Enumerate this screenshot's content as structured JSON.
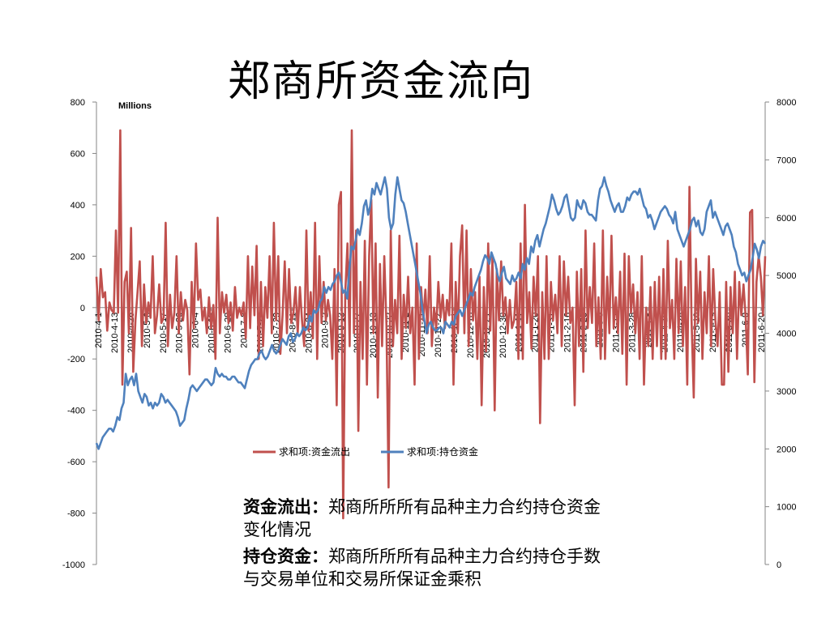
{
  "slide": {
    "title": "郑商所资金流向",
    "desc1_label": "资金流出：",
    "desc1_text": "郑商所所所有品种主力合约持仓资金变化情况",
    "desc2_label": "持仓资金：",
    "desc2_text": "郑商所所所有品种主力合约持仓手数与交易单位和交易所保证金乘积"
  },
  "chart_data": {
    "type": "line",
    "unit_label": "Millions",
    "ylim_left": [
      -1000,
      800
    ],
    "yticks_left": [
      800,
      600,
      400,
      200,
      0,
      -200,
      -400,
      -600,
      -800,
      -1000
    ],
    "ylim_right": [
      0,
      8000
    ],
    "yticks_right": [
      8000,
      7000,
      6000,
      5000,
      4000,
      3000,
      2000,
      1000,
      0
    ],
    "x_tick_labels": [
      "2010-4-1",
      "2010-4-13",
      "2010-4-26",
      "2010-5-6",
      "2010-5-17",
      "2010-5-26",
      "2010-6-4",
      "2010-6-18",
      "2010-6-29",
      "2010-7-8",
      "2010-7-20",
      "2010-7-29",
      "2010-8-11",
      "2010-8-24",
      "2010-9-2",
      "2010-9-13",
      "2010-9-27",
      "2010-10-13",
      "2010-10-22",
      "2010-11-2",
      "2010-11-11",
      "2010-11-22",
      "2010-12-1",
      "2010-12-10",
      "2010-12-21",
      "2010-12-30",
      "2011-1-11",
      "2011-1-20",
      "2011-1-31",
      "2011-2-16",
      "2011-2-25",
      "2011-3-8",
      "2011-3-17",
      "2011-3-28",
      "2011-4-8",
      "2011-4-19",
      "2011-4-28",
      "2011-5-10",
      "2011-5-19",
      "2011-5-30",
      "2011-6-9",
      "2011-6-20"
    ],
    "series": [
      {
        "name": "求和项:资金流出",
        "axis": "left",
        "color": "#c0504d",
        "values": [
          120,
          -50,
          150,
          40,
          60,
          -90,
          20,
          -10,
          -20,
          300,
          -20,
          690,
          -300,
          100,
          140,
          -100,
          310,
          -250,
          -50,
          60,
          180,
          -150,
          90,
          -60,
          20,
          -40,
          200,
          -100,
          -30,
          90,
          -60,
          -40,
          330,
          -150,
          50,
          -80,
          -20,
          200,
          -100,
          60,
          -50,
          30,
          -10,
          -260,
          100,
          -80,
          250,
          30,
          70,
          -50,
          0,
          -100,
          40,
          -80,
          10,
          -200,
          350,
          -100,
          60,
          -20,
          50,
          -60,
          20,
          -90,
          80,
          -40,
          0,
          -30,
          20,
          -120,
          200,
          -80,
          160,
          -30,
          240,
          -200,
          100,
          -150,
          80,
          -40,
          200,
          -100,
          330,
          -50,
          200,
          -180,
          -30,
          180,
          -100,
          150,
          -60,
          -20,
          80,
          -100,
          80,
          -50,
          -150,
          300,
          -90,
          60,
          -120,
          330,
          -200,
          200,
          -60,
          100,
          -50,
          30,
          -30,
          -200,
          150,
          -380,
          400,
          450,
          -820,
          60,
          250,
          -150,
          690,
          -100,
          300,
          -480,
          100,
          -200,
          260,
          -300,
          200,
          420,
          -100,
          250,
          -350,
          170,
          -150,
          200,
          -70,
          -700,
          300,
          -150,
          30,
          -100,
          280,
          -200,
          50,
          -80,
          120,
          -100,
          0,
          -300,
          250,
          -200,
          80,
          -50,
          70,
          -100,
          200,
          -150,
          0,
          -80,
          100,
          -40,
          50,
          -80,
          30,
          -30,
          250,
          -300,
          100,
          -100,
          200,
          320,
          -100,
          300,
          -150,
          150,
          -50,
          60,
          -200,
          120,
          -380,
          80,
          -170,
          250,
          -90,
          200,
          -400,
          150,
          -50,
          180,
          -30,
          40,
          -100,
          30,
          -80,
          -50,
          100,
          -200,
          250,
          -200,
          400,
          -60,
          60,
          -160,
          120,
          -30,
          200,
          -450,
          60,
          -200,
          200,
          -200,
          100,
          -50,
          50,
          -100,
          200,
          -150,
          180,
          -30,
          120,
          -60,
          0,
          -380,
          140,
          -150,
          150,
          -250,
          300,
          -80,
          80,
          -60,
          250,
          -150,
          40,
          -200,
          300,
          -200,
          120,
          -100,
          280,
          -80,
          40,
          -100,
          140,
          -180,
          210,
          -300,
          200,
          -20,
          90,
          -100,
          60,
          -200,
          200,
          -300,
          0,
          -150,
          80,
          -200,
          100,
          -150,
          120,
          -200,
          150,
          -200,
          260,
          -80,
          30,
          -200,
          190,
          -100,
          180,
          -150,
          80,
          -300,
          470,
          -50,
          -350,
          190,
          -60,
          140,
          -200,
          60,
          -100,
          200,
          -150,
          150,
          -50,
          -150,
          60,
          -300,
          -300,
          100,
          -250,
          80,
          -100,
          140,
          -200,
          100,
          -30,
          90,
          -40,
          -260,
          370,
          380,
          -290,
          100,
          200,
          120,
          -30,
          200
        ],
        "flag": "derived_values"
      },
      {
        "name": "求和项:持仓资金",
        "axis": "right",
        "color": "#4f81bd",
        "values": [
          2100,
          2000,
          2100,
          2200,
          2250,
          2300,
          2350,
          2350,
          2300,
          2400,
          2550,
          2500,
          2700,
          2800,
          3300,
          3100,
          3200,
          3250,
          3100,
          3300,
          3000,
          2900,
          2800,
          2950,
          2900,
          2750,
          2800,
          2700,
          2800,
          2750,
          2800,
          2950,
          2900,
          2800,
          2850,
          2800,
          2750,
          2700,
          2650,
          2550,
          2400,
          2450,
          2500,
          2700,
          2850,
          3050,
          3100,
          3050,
          3000,
          3050,
          3100,
          3150,
          3200,
          3200,
          3150,
          3100,
          3150,
          3400,
          3300,
          3250,
          3300,
          3250,
          3250,
          3200,
          3200,
          3250,
          3250,
          3200,
          3150,
          3150,
          3100,
          3050,
          3200,
          3350,
          3450,
          3500,
          3550,
          3550,
          3650,
          3700,
          3600,
          3550,
          3600,
          3700,
          3800,
          3700,
          3650,
          3700,
          3800,
          3900,
          3850,
          3800,
          3950,
          4000,
          3850,
          3900,
          4000,
          3950,
          4000,
          4100,
          4050,
          4100,
          4300,
          4200,
          4400,
          4350,
          4400,
          4550,
          4600,
          4800,
          4700,
          4800,
          4750,
          4850,
          4900,
          5000,
          5050,
          4900,
          4700,
          4750,
          4600,
          5100,
          5500,
          5450,
          5600,
          5800,
          5700,
          5900,
          6200,
          6300,
          6050,
          6200,
          6500,
          6400,
          6600,
          6500,
          6400,
          6550,
          6700,
          6500,
          6000,
          5800,
          5900,
          6400,
          6700,
          6500,
          6300,
          6250,
          6100,
          5900,
          5700,
          5500,
          5300,
          5100,
          4900,
          4700,
          4400,
          4200,
          4000,
          4150,
          4200,
          4100,
          4050,
          4050,
          4100,
          4100,
          4000,
          4200,
          4150,
          4100,
          4200,
          4150,
          4300,
          4350,
          4400,
          4300,
          4400,
          4500,
          4600,
          4700,
          4650,
          4800,
          4900,
          5000,
          5100,
          5250,
          5350,
          5300,
          5200,
          5400,
          5300,
          5200,
          5000,
          4900,
          5050,
          5150,
          4950,
          4900,
          4850,
          5000,
          4900,
          4950,
          5050,
          4950,
          5200,
          5100,
          5300,
          5200,
          5500,
          5400,
          5600,
          5700,
          5500,
          5650,
          5800,
          5900,
          6050,
          6200,
          6400,
          6300,
          6150,
          6050,
          6100,
          6200,
          6350,
          6400,
          6200,
          6000,
          5950,
          6000,
          6300,
          6200,
          6150,
          6300,
          6250,
          6100,
          6050,
          6050,
          6000,
          5950,
          6300,
          6500,
          6550,
          6700,
          6550,
          6450,
          6300,
          6200,
          6100,
          6200,
          6250,
          6100,
          6100,
          6200,
          6350,
          6300,
          6400,
          6450,
          6450,
          6400,
          6500,
          6350,
          6200,
          6150,
          6000,
          6050,
          5950,
          5800,
          5900,
          6000,
          6100,
          6150,
          6200,
          6150,
          6050,
          6000,
          5900,
          6100,
          5800,
          5700,
          5600,
          5500,
          5600,
          5700,
          5800,
          5950,
          6000,
          5850,
          5950,
          5750,
          5700,
          5800,
          6100,
          6200,
          6300,
          6000,
          6100,
          6000,
          5900,
          5800,
          5700,
          5850,
          5900,
          5800,
          5700,
          5500,
          5400,
          5200,
          5100,
          5000,
          5050,
          4900,
          5000,
          5100,
          5300,
          5550,
          5450,
          5300,
          5500,
          5600,
          5550
        ]
      }
    ],
    "legend_placement": "center-below-plot",
    "grid": false
  }
}
